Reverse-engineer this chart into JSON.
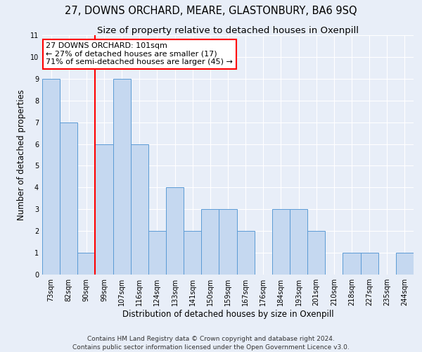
{
  "title": "27, DOWNS ORCHARD, MEARE, GLASTONBURY, BA6 9SQ",
  "subtitle": "Size of property relative to detached houses in Oxenpill",
  "xlabel": "Distribution of detached houses by size in Oxenpill",
  "ylabel": "Number of detached properties",
  "categories": [
    "73sqm",
    "82sqm",
    "90sqm",
    "99sqm",
    "107sqm",
    "116sqm",
    "124sqm",
    "133sqm",
    "141sqm",
    "150sqm",
    "159sqm",
    "167sqm",
    "176sqm",
    "184sqm",
    "193sqm",
    "201sqm",
    "210sqm",
    "218sqm",
    "227sqm",
    "235sqm",
    "244sqm"
  ],
  "values": [
    9,
    7,
    1,
    6,
    9,
    6,
    2,
    4,
    2,
    3,
    3,
    2,
    0,
    3,
    3,
    2,
    0,
    1,
    1,
    0,
    1
  ],
  "bar_color": "#c5d8f0",
  "bar_edge_color": "#5b9bd5",
  "property_bin_index": 3,
  "annotation_text": "27 DOWNS ORCHARD: 101sqm\n← 27% of detached houses are smaller (17)\n71% of semi-detached houses are larger (45) →",
  "annotation_box_color": "white",
  "annotation_box_edge_color": "red",
  "vline_color": "red",
  "ylim": [
    0,
    11
  ],
  "footer": "Contains HM Land Registry data © Crown copyright and database right 2024.\nContains public sector information licensed under the Open Government Licence v3.0.",
  "background_color": "#e8eef8",
  "grid_color": "#ffffff",
  "title_fontsize": 10.5,
  "subtitle_fontsize": 9.5,
  "label_fontsize": 8.5,
  "tick_fontsize": 7,
  "annotation_fontsize": 8,
  "footer_fontsize": 6.5
}
